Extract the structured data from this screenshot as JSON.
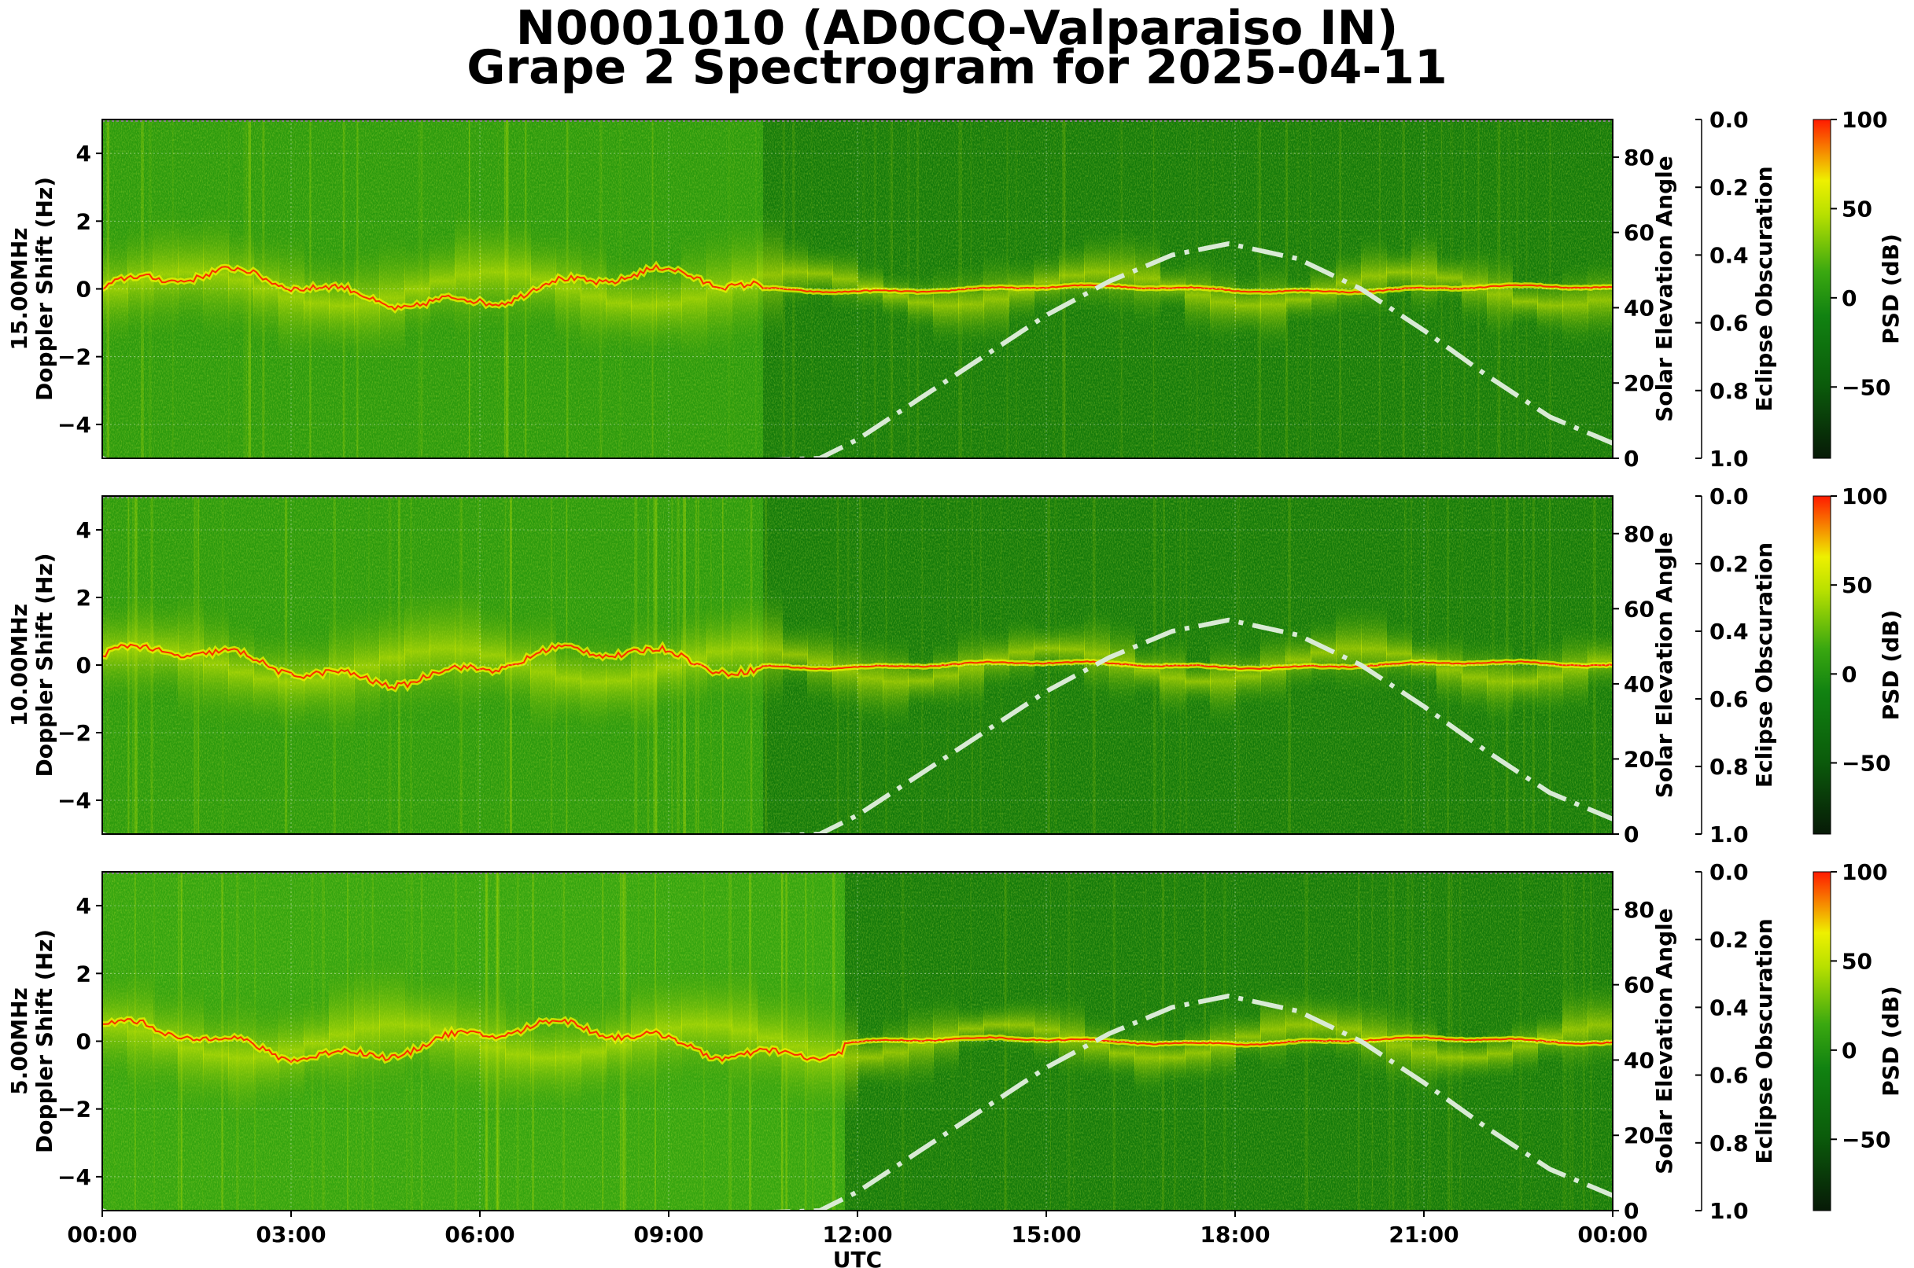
{
  "title": {
    "line1": "N0001010 (AD0CQ-Valparaiso IN)",
    "line2": "Grape 2 Spectrogram for 2025-04-11"
  },
  "colors": {
    "psd_low": "#071a07",
    "psd_dark": "#0b5c0b",
    "psd_mid": "#1a8a0a",
    "psd_green": "#3aa810",
    "psd_high_mid": "#e8f000",
    "psd_high": "#ff1a00",
    "elevation_curve": "#d9ead5",
    "grid": "#ffffff"
  },
  "chart_data": [
    {
      "type": "heatmap",
      "panel": "15.00MHz",
      "ylabel_line1": "15.00MHz",
      "ylabel_line2": "Doppler Shift (Hz)",
      "ylim": [
        -5,
        5
      ],
      "yticks": [
        4,
        2,
        0,
        -2,
        -4
      ],
      "right_ylabel": "Solar Elevation Angle",
      "right_ylim": [
        0,
        90
      ],
      "right_yticks": [
        0,
        20,
        40,
        60,
        80
      ],
      "eclipse_label": "Eclipse Obscuration",
      "eclipse_ylim": [
        1.0,
        0.0
      ],
      "eclipse_ticks": [
        "0.0",
        "0.2",
        "0.4",
        "0.6",
        "0.8",
        "1.0"
      ],
      "colorbar_label": "PSD (dB)",
      "colorbar_range": [
        -90,
        100
      ],
      "colorbar_ticks": [
        100,
        50,
        0,
        -50
      ],
      "solar_elevation": {
        "x_hours": [
          0,
          1,
          11.4,
          12,
          13,
          14,
          15,
          16,
          17,
          17.9,
          19,
          20,
          21,
          22,
          23,
          24
        ],
        "y_deg": [
          0,
          -6,
          0,
          5,
          16,
          27,
          38,
          47,
          54,
          57,
          53,
          45,
          34,
          22,
          11,
          4
        ]
      }
    },
    {
      "type": "heatmap",
      "panel": "10.00MHz",
      "ylabel_line1": "10.00MHz",
      "ylabel_line2": "Doppler Shift (Hz)",
      "ylim": [
        -5,
        5
      ],
      "yticks": [
        4,
        2,
        0,
        -2,
        -4
      ],
      "right_ylabel": "Solar Elevation Angle",
      "right_ylim": [
        0,
        90
      ],
      "right_yticks": [
        0,
        20,
        40,
        60,
        80
      ],
      "eclipse_label": "Eclipse Obscuration",
      "eclipse_ylim": [
        1.0,
        0.0
      ],
      "eclipse_ticks": [
        "0.0",
        "0.2",
        "0.4",
        "0.6",
        "0.8",
        "1.0"
      ],
      "colorbar_label": "PSD (dB)",
      "colorbar_range": [
        -90,
        100
      ],
      "colorbar_ticks": [
        100,
        50,
        0,
        -50
      ],
      "solar_elevation": {
        "x_hours": [
          0,
          1,
          11.4,
          12,
          13,
          14,
          15,
          16,
          17,
          17.9,
          19,
          20,
          21,
          22,
          23,
          24
        ],
        "y_deg": [
          0,
          -6,
          0,
          5,
          16,
          27,
          38,
          47,
          54,
          57,
          53,
          45,
          34,
          22,
          11,
          4
        ]
      }
    },
    {
      "type": "heatmap",
      "panel": "5.00MHz",
      "ylabel_line1": "5.00MHz",
      "ylabel_line2": "Doppler Shift (Hz)",
      "ylim": [
        -5,
        5
      ],
      "yticks": [
        4,
        2,
        0,
        -2,
        -4
      ],
      "right_ylabel": "Solar Elevation Angle",
      "right_ylim": [
        0,
        90
      ],
      "right_yticks": [
        0,
        20,
        40,
        60,
        80
      ],
      "eclipse_label": "Eclipse Obscuration",
      "eclipse_ylim": [
        1.0,
        0.0
      ],
      "eclipse_ticks": [
        "0.0",
        "0.2",
        "0.4",
        "0.6",
        "0.8",
        "1.0"
      ],
      "colorbar_label": "PSD (dB)",
      "colorbar_range": [
        -90,
        100
      ],
      "colorbar_ticks": [
        100,
        50,
        0,
        -50
      ],
      "solar_elevation": {
        "x_hours": [
          0,
          1,
          11.4,
          12,
          13,
          14,
          15,
          16,
          17,
          17.9,
          19,
          20,
          21,
          22,
          23,
          24
        ],
        "y_deg": [
          0,
          -6,
          0,
          5,
          16,
          27,
          38,
          47,
          54,
          57,
          53,
          45,
          34,
          22,
          11,
          4
        ]
      }
    }
  ],
  "x_axis": {
    "label": "UTC",
    "range_hours": [
      0,
      24
    ],
    "ticks": [
      "00:00",
      "03:00",
      "06:00",
      "09:00",
      "12:00",
      "15:00",
      "18:00",
      "21:00",
      "00:00"
    ],
    "tick_hours": [
      0,
      3,
      6,
      9,
      12,
      15,
      18,
      21,
      24
    ]
  }
}
